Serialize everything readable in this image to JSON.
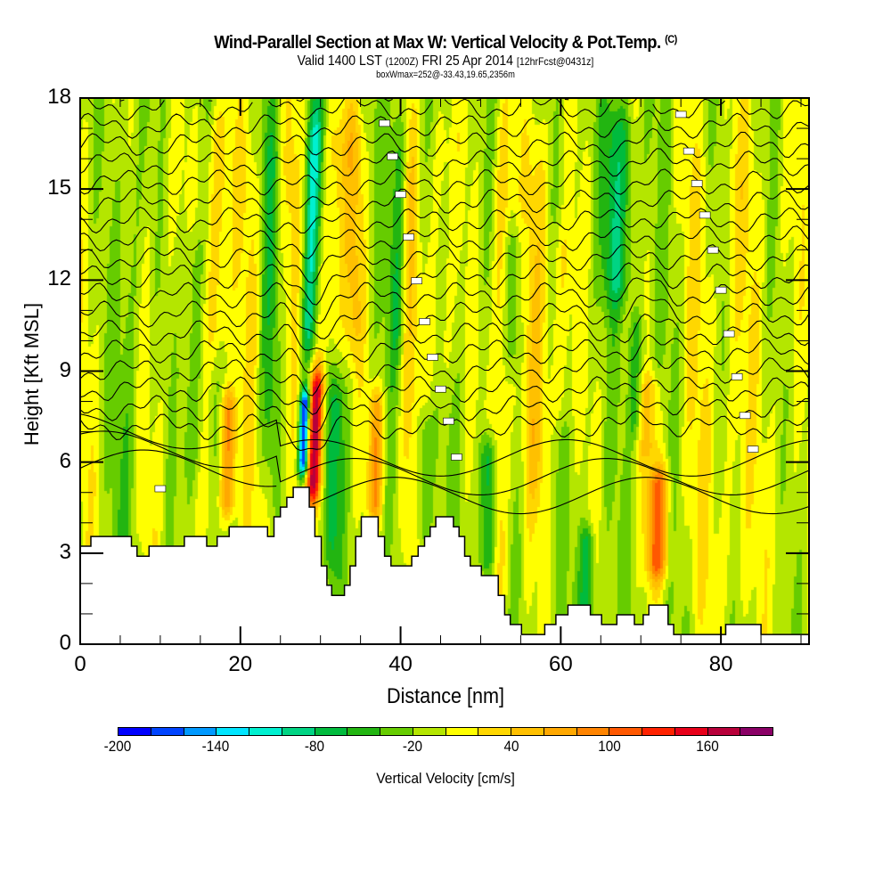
{
  "header": {
    "title": "Wind-Parallel Section at Max W: Vertical Velocity & Pot.Temp.",
    "copyright": "(C)",
    "valid_prefix": "Valid 1400 LST",
    "valid_utc": "(1200Z)",
    "valid_date": "FRI 25 Apr 2014",
    "forecast_info": "[12hrFcst@0431z]",
    "box_info": "boxWmax=252@-33.43,19.65,2356m"
  },
  "chart_data": {
    "type": "heatmap",
    "title": "Wind-Parallel Section at Max W: Vertical Velocity & Pot.Temp.",
    "xlabel": "Distance [nm]",
    "ylabel": "Height [Kft MSL]",
    "xlim": [
      0,
      91
    ],
    "ylim": [
      0,
      18
    ],
    "x_ticks": [
      0,
      20,
      40,
      60,
      80
    ],
    "x_tick_labels": [
      "0",
      "20",
      "40",
      "60",
      "80"
    ],
    "x_minor_step": 5,
    "y_ticks": [
      0,
      3,
      6,
      9,
      12,
      15,
      18
    ],
    "y_tick_labels": [
      "0",
      "3",
      "6",
      "9",
      "12",
      "15",
      "18"
    ],
    "y_minor_step": 1,
    "colorbar": {
      "title": "Vertical Velocity [cm/s]",
      "min": -200,
      "max": 200,
      "step": 20,
      "tick_values": [
        -200,
        -140,
        -80,
        -20,
        40,
        100,
        160
      ],
      "tick_labels": [
        "-200",
        "-140",
        "-80",
        "-20",
        "40",
        "100",
        "160"
      ],
      "colors": [
        "#0000ff",
        "#0044ff",
        "#0099ff",
        "#00e5ff",
        "#00f0d0",
        "#00d483",
        "#00bb3d",
        "#22b511",
        "#66cc00",
        "#b4e600",
        "#ffff00",
        "#ffd700",
        "#ffc000",
        "#ffa800",
        "#ff8400",
        "#ff5800",
        "#ff2200",
        "#e8001a",
        "#b8003a",
        "#8a0066"
      ]
    },
    "background_w": -10,
    "w_features": [
      {
        "x": 2,
        "w": 10,
        "width": 2.5,
        "z0": 0,
        "z1": 18
      },
      {
        "x": 6,
        "w": -25,
        "width": 1.5,
        "z0": 0,
        "z1": 18
      },
      {
        "x": 10,
        "w": 15,
        "width": 2.0,
        "z0": 0,
        "z1": 18
      },
      {
        "x": 14,
        "w": -35,
        "width": 1.2,
        "z0": 5,
        "z1": 14
      },
      {
        "x": 17,
        "w": 50,
        "width": 1.6,
        "z0": 9,
        "z1": 18
      },
      {
        "x": 18.6,
        "w": 95,
        "width": 1.0,
        "z0": 4,
        "z1": 8.5
      },
      {
        "x": 21,
        "w": 20,
        "width": 2.0,
        "z0": 0,
        "z1": 18
      },
      {
        "x": 23.5,
        "w": -40,
        "width": 1.2,
        "z0": 5,
        "z1": 18
      },
      {
        "x": 26,
        "w": 30,
        "width": 1.5,
        "z0": 3,
        "z1": 18
      },
      {
        "x": 28.3,
        "w": -95,
        "width": 1.0,
        "z0": 9,
        "z1": 18
      },
      {
        "x": 28.2,
        "w": -190,
        "width": 0.6,
        "z0": 5.5,
        "z1": 8.5
      },
      {
        "x": 29.6,
        "w": 165,
        "width": 0.9,
        "z0": 4.5,
        "z1": 9.2
      },
      {
        "x": 31,
        "w": 45,
        "width": 1.5,
        "z0": 9,
        "z1": 18
      },
      {
        "x": 32,
        "w": -55,
        "width": 0.9,
        "z0": 2,
        "z1": 9
      },
      {
        "x": 34,
        "w": 45,
        "width": 1.2,
        "z0": 9,
        "z1": 18
      },
      {
        "x": 37,
        "w": 80,
        "width": 0.9,
        "z0": 4,
        "z1": 8.5
      },
      {
        "x": 39.5,
        "w": -45,
        "width": 1.0,
        "z0": 9,
        "z1": 18
      },
      {
        "x": 41,
        "w": 35,
        "width": 1.2,
        "z0": 0,
        "z1": 18
      },
      {
        "x": 43,
        "w": -40,
        "width": 1.0,
        "z0": 3,
        "z1": 8
      },
      {
        "x": 45,
        "w": 30,
        "width": 1.5,
        "z0": 8,
        "z1": 18
      },
      {
        "x": 51,
        "w": -80,
        "width": 1.0,
        "z0": 2,
        "z1": 7
      },
      {
        "x": 52.5,
        "w": 50,
        "width": 1.2,
        "z0": 0,
        "z1": 18
      },
      {
        "x": 54,
        "w": -35,
        "width": 1.2,
        "z0": 9,
        "z1": 14
      },
      {
        "x": 57,
        "w": 45,
        "width": 1.5,
        "z0": 4,
        "z1": 18
      },
      {
        "x": 60,
        "w": 30,
        "width": 1.5,
        "z0": 7,
        "z1": 14
      },
      {
        "x": 63.5,
        "w": -70,
        "width": 0.9,
        "z0": 0,
        "z1": 4
      },
      {
        "x": 67,
        "w": -65,
        "width": 1.8,
        "z0": 11,
        "z1": 18
      },
      {
        "x": 69.5,
        "w": -50,
        "width": 1.0,
        "z0": 6.5,
        "z1": 11
      },
      {
        "x": 72.3,
        "w": 110,
        "width": 1.3,
        "z0": 2,
        "z1": 6
      },
      {
        "x": 71,
        "w": 45,
        "width": 1.5,
        "z0": 6,
        "z1": 9
      },
      {
        "x": 77,
        "w": 20,
        "width": 2.0,
        "z0": 0,
        "z1": 18
      },
      {
        "x": 82,
        "w": 25,
        "width": 2.5,
        "z0": 0,
        "z1": 18
      },
      {
        "x": 88,
        "w": 15,
        "width": 2.0,
        "z0": 0,
        "z1": 18
      }
    ],
    "terrain_kft": [
      [
        0,
        3.23
      ],
      [
        1.33,
        3.23
      ],
      [
        1.33,
        3.55
      ],
      [
        6.4,
        3.55
      ],
      [
        6.4,
        3.23
      ],
      [
        7.1,
        3.23
      ],
      [
        7.1,
        2.9
      ],
      [
        8.6,
        2.9
      ],
      [
        8.6,
        3.23
      ],
      [
        13,
        3.23
      ],
      [
        13,
        3.55
      ],
      [
        15.8,
        3.55
      ],
      [
        15.8,
        3.23
      ],
      [
        17.1,
        3.23
      ],
      [
        17.1,
        3.55
      ],
      [
        18.6,
        3.55
      ],
      [
        18.6,
        3.87
      ],
      [
        23.4,
        3.87
      ],
      [
        23.4,
        3.55
      ],
      [
        24.2,
        3.55
      ],
      [
        24.2,
        4.2
      ],
      [
        25,
        4.2
      ],
      [
        25,
        4.52
      ],
      [
        25.8,
        4.52
      ],
      [
        25.8,
        4.84
      ],
      [
        26.6,
        4.84
      ],
      [
        26.6,
        5.17
      ],
      [
        28.6,
        5.17
      ],
      [
        28.6,
        4.52
      ],
      [
        29.3,
        4.52
      ],
      [
        29.3,
        3.55
      ],
      [
        30.1,
        3.55
      ],
      [
        30.1,
        2.58
      ],
      [
        30.8,
        2.58
      ],
      [
        30.8,
        1.94
      ],
      [
        31.4,
        1.94
      ],
      [
        31.4,
        1.61
      ],
      [
        33,
        1.61
      ],
      [
        33,
        1.94
      ],
      [
        33.7,
        1.94
      ],
      [
        33.7,
        2.58
      ],
      [
        34.4,
        2.58
      ],
      [
        34.4,
        3.55
      ],
      [
        35.1,
        3.55
      ],
      [
        35.1,
        4.2
      ],
      [
        37.2,
        4.2
      ],
      [
        37.2,
        3.55
      ],
      [
        38,
        3.55
      ],
      [
        38,
        2.9
      ],
      [
        38.8,
        2.9
      ],
      [
        38.8,
        2.58
      ],
      [
        41.4,
        2.58
      ],
      [
        41.4,
        2.9
      ],
      [
        42.2,
        2.9
      ],
      [
        42.2,
        3.23
      ],
      [
        43,
        3.23
      ],
      [
        43,
        3.55
      ],
      [
        43.7,
        3.55
      ],
      [
        43.7,
        3.87
      ],
      [
        44.4,
        3.87
      ],
      [
        44.4,
        4.2
      ],
      [
        46.6,
        4.2
      ],
      [
        46.6,
        3.87
      ],
      [
        47.3,
        3.87
      ],
      [
        47.3,
        3.55
      ],
      [
        48,
        3.55
      ],
      [
        48,
        2.9
      ],
      [
        48.7,
        2.9
      ],
      [
        48.7,
        2.58
      ],
      [
        50.1,
        2.58
      ],
      [
        50.1,
        2.26
      ],
      [
        52.2,
        2.26
      ],
      [
        52.2,
        1.61
      ],
      [
        53,
        1.61
      ],
      [
        53,
        0.97
      ],
      [
        53.7,
        0.97
      ],
      [
        53.7,
        0.65
      ],
      [
        55.1,
        0.65
      ],
      [
        55.1,
        0.32
      ],
      [
        58,
        0.32
      ],
      [
        58,
        0.65
      ],
      [
        59.4,
        0.65
      ],
      [
        59.4,
        0.97
      ],
      [
        60.9,
        0.97
      ],
      [
        60.9,
        1.29
      ],
      [
        63.7,
        1.29
      ],
      [
        63.7,
        0.97
      ],
      [
        65.1,
        0.97
      ],
      [
        65.1,
        0.65
      ],
      [
        67,
        0.65
      ],
      [
        67,
        0.97
      ],
      [
        69.2,
        0.97
      ],
      [
        69.2,
        0.65
      ],
      [
        70.3,
        0.65
      ],
      [
        70.3,
        0.97
      ],
      [
        71,
        0.97
      ],
      [
        71,
        1.29
      ],
      [
        73.4,
        1.29
      ],
      [
        73.4,
        0.65
      ],
      [
        74.1,
        0.65
      ],
      [
        74.1,
        0.32
      ],
      [
        80.6,
        0.32
      ],
      [
        80.6,
        0.65
      ],
      [
        85,
        0.65
      ],
      [
        85,
        0.32
      ],
      [
        91,
        0.32
      ]
    ],
    "theta_contours": {
      "count": 22,
      "base_height_kft": 5.3,
      "spacing_kft": 0.62,
      "label_color": "#ffffff"
    }
  }
}
